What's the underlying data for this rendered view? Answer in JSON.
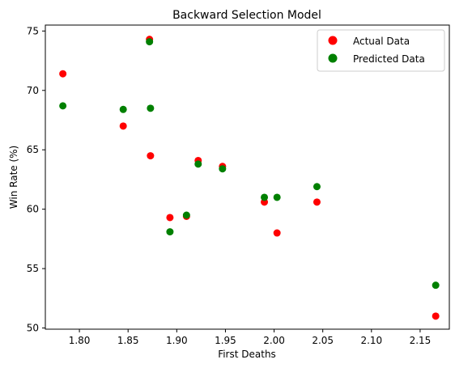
{
  "chart_data": {
    "type": "scatter",
    "title": "Backward Selection Model",
    "xlabel": "First Deaths",
    "ylabel": "Win Rate (%)",
    "xlim": [
      1.765,
      2.18
    ],
    "ylim": [
      49.9,
      75.5
    ],
    "xticks": [
      1.8,
      1.85,
      1.9,
      1.95,
      2.0,
      2.05,
      2.1,
      2.15
    ],
    "xtick_labels": [
      "1.80",
      "1.85",
      "1.90",
      "1.95",
      "2.00",
      "2.05",
      "2.10",
      "2.15"
    ],
    "yticks": [
      50,
      55,
      60,
      65,
      70,
      75
    ],
    "ytick_labels": [
      "50",
      "55",
      "60",
      "65",
      "70",
      "75"
    ],
    "grid": false,
    "legend_position": "top-right",
    "series": [
      {
        "name": "Actual Data",
        "color": "#ff0000",
        "points": [
          [
            1.783,
            71.4
          ],
          [
            1.845,
            67.0
          ],
          [
            1.872,
            74.3
          ],
          [
            1.873,
            64.5
          ],
          [
            1.893,
            59.3
          ],
          [
            1.91,
            59.4
          ],
          [
            1.922,
            64.1
          ],
          [
            1.947,
            63.6
          ],
          [
            1.99,
            60.6
          ],
          [
            2.003,
            58.0
          ],
          [
            2.044,
            60.6
          ],
          [
            2.166,
            51.0
          ]
        ]
      },
      {
        "name": "Predicted Data",
        "color": "#008000",
        "points": [
          [
            1.783,
            68.7
          ],
          [
            1.845,
            68.4
          ],
          [
            1.872,
            74.1
          ],
          [
            1.873,
            68.5
          ],
          [
            1.893,
            58.1
          ],
          [
            1.91,
            59.5
          ],
          [
            1.922,
            63.8
          ],
          [
            1.947,
            63.4
          ],
          [
            1.99,
            61.0
          ],
          [
            2.003,
            61.0
          ],
          [
            2.044,
            61.9
          ],
          [
            2.166,
            53.6
          ]
        ]
      }
    ]
  }
}
